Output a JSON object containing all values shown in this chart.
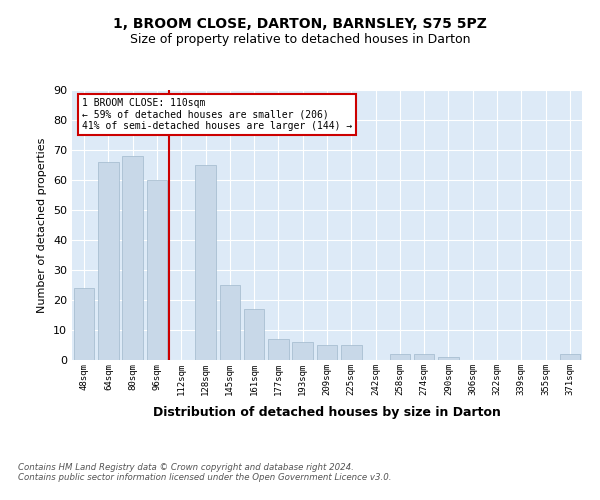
{
  "title": "1, BROOM CLOSE, DARTON, BARNSLEY, S75 5PZ",
  "subtitle": "Size of property relative to detached houses in Darton",
  "xlabel": "Distribution of detached houses by size in Darton",
  "ylabel": "Number of detached properties",
  "categories": [
    "48sqm",
    "64sqm",
    "80sqm",
    "96sqm",
    "112sqm",
    "128sqm",
    "145sqm",
    "161sqm",
    "177sqm",
    "193sqm",
    "209sqm",
    "225sqm",
    "242sqm",
    "258sqm",
    "274sqm",
    "290sqm",
    "306sqm",
    "322sqm",
    "339sqm",
    "355sqm",
    "371sqm"
  ],
  "values": [
    24,
    66,
    68,
    60,
    0,
    65,
    25,
    17,
    7,
    6,
    5,
    5,
    0,
    2,
    2,
    1,
    0,
    0,
    0,
    0,
    2
  ],
  "bar_color": "#c8d8e8",
  "bar_edge_color": "#a0b8cc",
  "vline_x_index": 4,
  "vline_color": "#cc0000",
  "annotation_text": "1 BROOM CLOSE: 110sqm\n← 59% of detached houses are smaller (206)\n41% of semi-detached houses are larger (144) →",
  "annotation_box_color": "#ffffff",
  "annotation_box_edge": "#cc0000",
  "ylim": [
    0,
    90
  ],
  "yticks": [
    0,
    10,
    20,
    30,
    40,
    50,
    60,
    70,
    80,
    90
  ],
  "footnote": "Contains HM Land Registry data © Crown copyright and database right 2024.\nContains public sector information licensed under the Open Government Licence v3.0.",
  "bg_color": "#ddeaf7",
  "title_fontsize": 10,
  "subtitle_fontsize": 9
}
